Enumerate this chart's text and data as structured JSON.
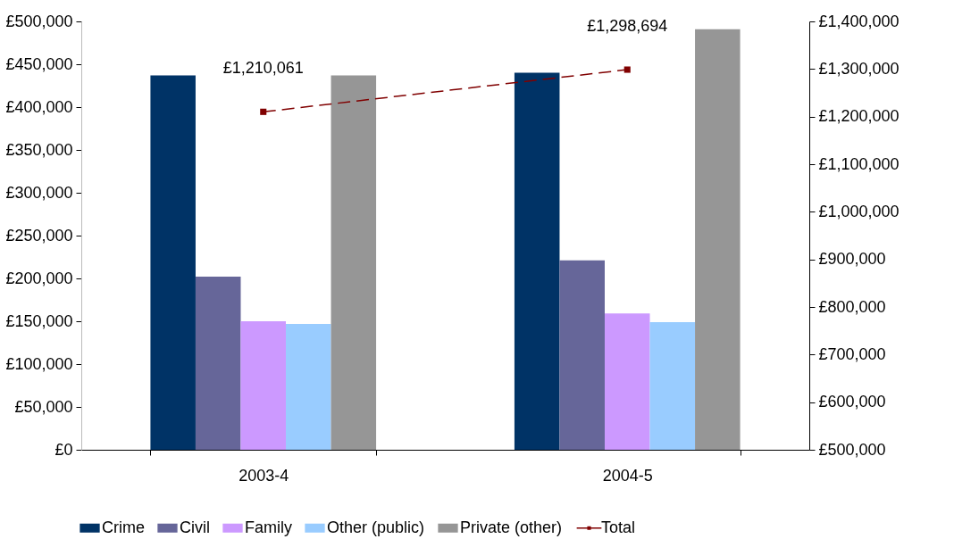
{
  "chart_data": {
    "type": "bar",
    "categories": [
      "2003-4",
      "2004-5"
    ],
    "series": [
      {
        "name": "Crime",
        "color": "#003366",
        "values": [
          437000,
          440000
        ]
      },
      {
        "name": "Civil",
        "color": "#666699",
        "values": [
          202000,
          221000
        ]
      },
      {
        "name": "Family",
        "color": "#cc99ff",
        "values": [
          150000,
          159000
        ]
      },
      {
        "name": "Other (public)",
        "color": "#99ccff",
        "values": [
          147000,
          149000
        ]
      },
      {
        "name": "Private (other)",
        "color": "#969696",
        "values": [
          437000,
          491000
        ]
      },
      {
        "name": "Total",
        "type": "line",
        "axis": "y2",
        "color": "#800000",
        "values": [
          1210061,
          1298694
        ],
        "value_labels": [
          "£1,210,061",
          "£1,298,694"
        ]
      }
    ],
    "ylim": [
      0,
      500000
    ],
    "yticks": [
      {
        "value": 0,
        "label": "£0"
      },
      {
        "value": 50000,
        "label": "£50,000"
      },
      {
        "value": 100000,
        "label": "£100,000"
      },
      {
        "value": 150000,
        "label": "£150,000"
      },
      {
        "value": 200000,
        "label": "£200,000"
      },
      {
        "value": 250000,
        "label": "£250,000"
      },
      {
        "value": 300000,
        "label": "£300,000"
      },
      {
        "value": 350000,
        "label": "£350,000"
      },
      {
        "value": 400000,
        "label": "£400,000"
      },
      {
        "value": 450000,
        "label": "£450,000"
      },
      {
        "value": 500000,
        "label": "£500,000"
      }
    ],
    "y2lim": [
      500000,
      1400000
    ],
    "y2ticks": [
      {
        "value": 500000,
        "label": "£500,000"
      },
      {
        "value": 600000,
        "label": "£600,000"
      },
      {
        "value": 700000,
        "label": "£700,000"
      },
      {
        "value": 800000,
        "label": "£800,000"
      },
      {
        "value": 900000,
        "label": "£900,000"
      },
      {
        "value": 1000000,
        "label": "£1,000,000"
      },
      {
        "value": 1100000,
        "label": "£1,100,000"
      },
      {
        "value": 1200000,
        "label": "£1,200,000"
      },
      {
        "value": 1300000,
        "label": "£1,300,000"
      },
      {
        "value": 1400000,
        "label": "£1,400,000"
      }
    ],
    "grid": false,
    "legend": "bottom",
    "marker": "square",
    "line_style": "dashed"
  }
}
